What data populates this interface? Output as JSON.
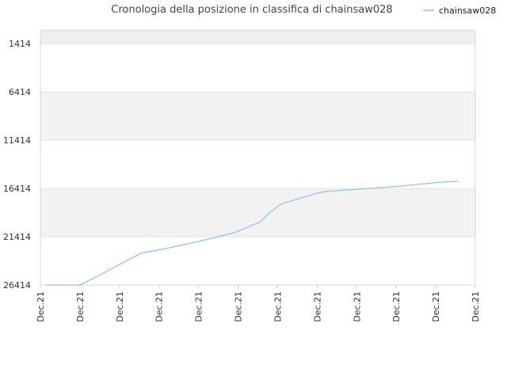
{
  "chart_data": {
    "type": "line",
    "title": "Cronologia della posizione in classifica di chainsaw028",
    "xlabel": "",
    "ylabel": "",
    "y_reversed": true,
    "ylim": [
      26414,
      0
    ],
    "y_ticks": [
      1414,
      6414,
      11414,
      16414,
      21414,
      26414
    ],
    "x_ticks": [
      "Dec.21",
      "Dec.21",
      "Dec.21",
      "Dec.21",
      "Dec.21",
      "Dec.21",
      "Dec.21",
      "Dec.21",
      "Dec.21",
      "Dec.21",
      "Dec.21",
      "Dec.21"
    ],
    "grid": true,
    "legend_position": "top-right",
    "series": [
      {
        "name": "chainsaw028",
        "color": "#90c3ee",
        "x": [
          0.15,
          1.0,
          1.4,
          1.9,
          2.55,
          3.1,
          4.0,
          4.9,
          5.55,
          5.8,
          6.1,
          7.0,
          7.25,
          8.0,
          9.0,
          10.0,
          10.55
        ],
        "values": [
          26414,
          26414,
          25600,
          24500,
          23100,
          22700,
          21900,
          21000,
          19900,
          18900,
          18000,
          16900,
          16700,
          16500,
          16200,
          15800,
          15650
        ]
      }
    ]
  }
}
